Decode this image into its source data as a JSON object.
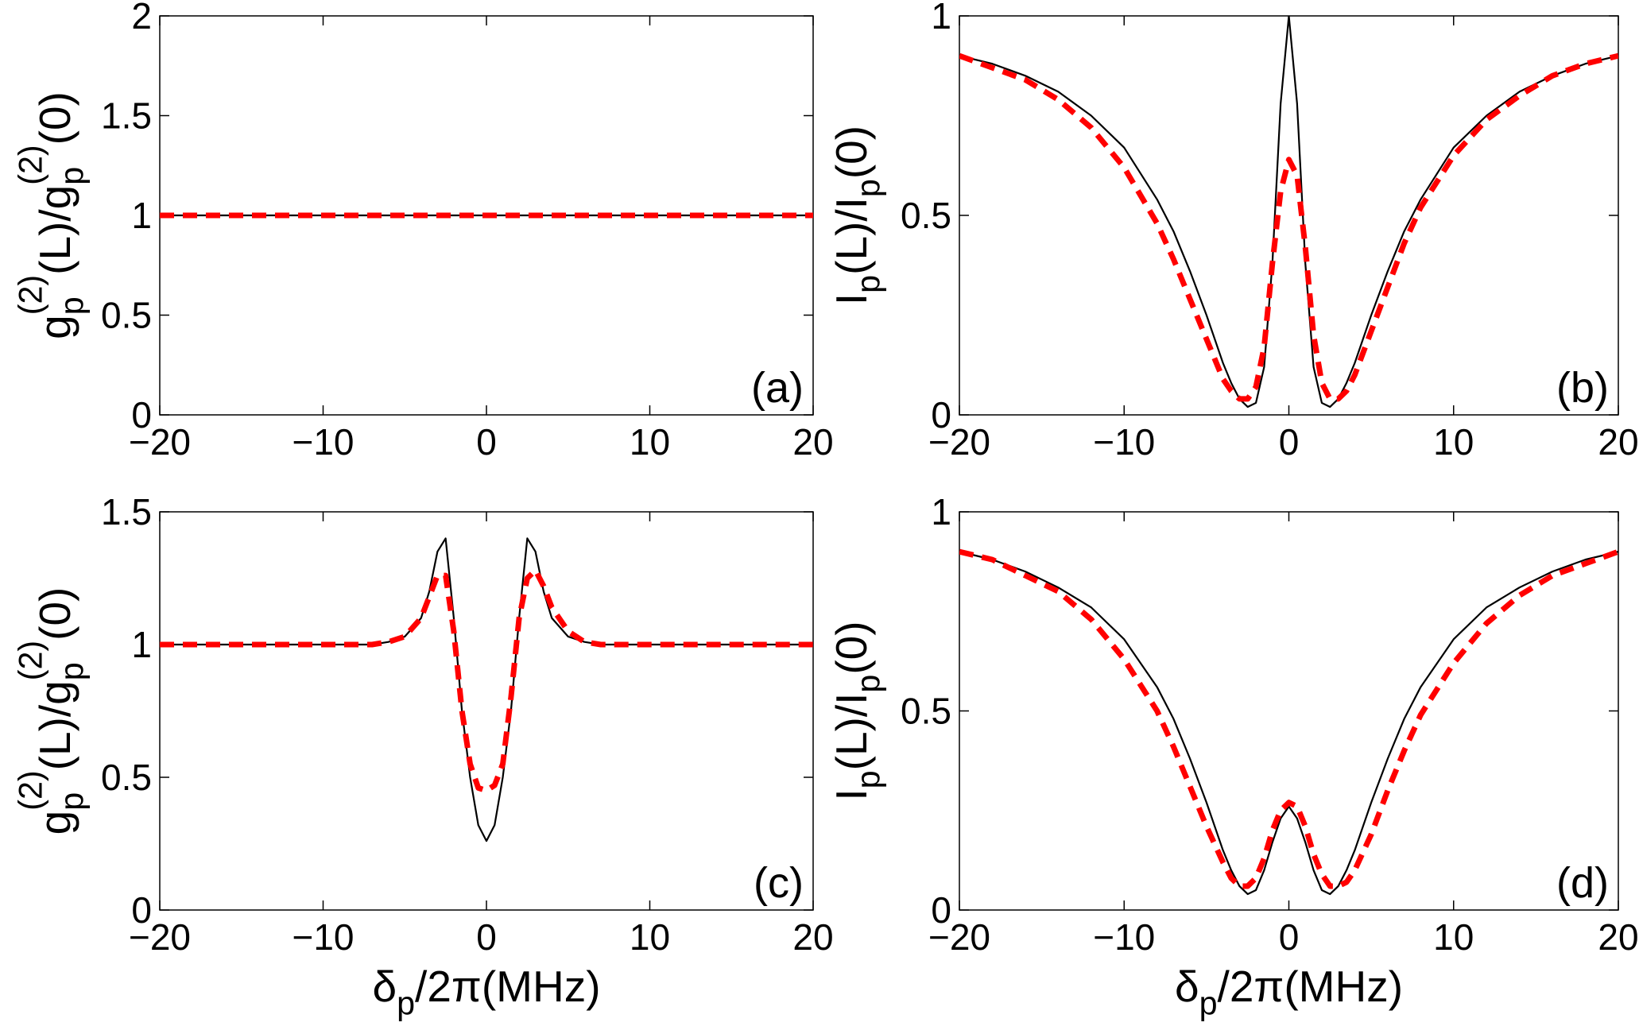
{
  "chart_data": [
    {
      "type": "line",
      "panel_label": "(a)",
      "ylabel": [
        "g",
        "p",
        "(2)",
        "(L)/g",
        "p",
        "(2)",
        "(0)"
      ],
      "xlim": [
        -20,
        20
      ],
      "xticks": [
        {
          "value": -20,
          "label": "−20"
        },
        {
          "value": -10,
          "label": "−10"
        },
        0,
        10,
        20
      ],
      "ylim": [
        0,
        2
      ],
      "yticks": [
        0,
        0.5,
        1,
        1.5,
        2
      ],
      "x": [
        -20,
        -18,
        -16,
        -14,
        -12,
        -10,
        -8,
        -7,
        -6,
        -5,
        -4,
        -3.5,
        -3,
        -2.5,
        -2,
        -1.5,
        -1,
        -0.5,
        0,
        0.5,
        1,
        1.5,
        2,
        2.5,
        3,
        3.5,
        4,
        5,
        6,
        7,
        8,
        10,
        12,
        14,
        16,
        18,
        20
      ],
      "series": [
        {
          "color": "#000000",
          "style": "solid",
          "values": [
            1,
            1,
            1,
            1,
            1,
            1,
            1,
            1,
            1,
            1,
            1,
            1,
            1,
            1,
            1,
            1,
            1,
            1,
            1,
            1,
            1,
            1,
            1,
            1,
            1,
            1,
            1,
            1,
            1,
            1,
            1,
            1,
            1,
            1,
            1,
            1,
            1
          ]
        },
        {
          "color": "#ff0000",
          "style": "dashed",
          "values": [
            1,
            1,
            1,
            1,
            1,
            1,
            1,
            1,
            1,
            1,
            1,
            1,
            1,
            1,
            1,
            1,
            1,
            1,
            1,
            1,
            1,
            1,
            1,
            1,
            1,
            1,
            1,
            1,
            1,
            1,
            1,
            1,
            1,
            1,
            1,
            1,
            1
          ]
        }
      ]
    },
    {
      "type": "line",
      "panel_label": "(b)",
      "ylabel": [
        "I",
        "p",
        "(L)/I",
        "p",
        "(0)"
      ],
      "xlim": [
        -20,
        20
      ],
      "xticks": [
        {
          "value": -20,
          "label": "−20"
        },
        {
          "value": -10,
          "label": "−10"
        },
        0,
        10,
        20
      ],
      "ylim": [
        0,
        1
      ],
      "yticks": [
        0,
        0.5,
        1
      ],
      "x": [
        -20,
        -18,
        -16,
        -14,
        -12,
        -10,
        -8,
        -7,
        -6,
        -5,
        -4,
        -3.5,
        -3,
        -2.5,
        -2,
        -1.5,
        -1,
        -0.5,
        0,
        0.5,
        1,
        1.5,
        2,
        2.5,
        3,
        3.5,
        4,
        5,
        6,
        7,
        8,
        10,
        12,
        14,
        16,
        18,
        20
      ],
      "series": [
        {
          "color": "#000000",
          "style": "solid",
          "values": [
            0.9,
            0.88,
            0.85,
            0.81,
            0.75,
            0.67,
            0.54,
            0.46,
            0.36,
            0.25,
            0.13,
            0.08,
            0.04,
            0.02,
            0.03,
            0.12,
            0.38,
            0.78,
            1.0,
            0.78,
            0.38,
            0.12,
            0.03,
            0.02,
            0.04,
            0.08,
            0.13,
            0.25,
            0.36,
            0.46,
            0.54,
            0.67,
            0.75,
            0.81,
            0.85,
            0.88,
            0.9
          ]
        },
        {
          "color": "#ff0000",
          "style": "dashed",
          "values": [
            0.9,
            0.87,
            0.84,
            0.79,
            0.72,
            0.62,
            0.48,
            0.39,
            0.29,
            0.19,
            0.09,
            0.06,
            0.04,
            0.04,
            0.07,
            0.17,
            0.38,
            0.56,
            0.64,
            0.6,
            0.42,
            0.2,
            0.08,
            0.04,
            0.04,
            0.06,
            0.1,
            0.21,
            0.32,
            0.43,
            0.52,
            0.65,
            0.74,
            0.8,
            0.85,
            0.88,
            0.9
          ]
        }
      ]
    },
    {
      "type": "line",
      "panel_label": "(c)",
      "ylabel": [
        "g",
        "p",
        "(2)",
        "(L)/g",
        "p",
        "(2)",
        "(0)"
      ],
      "xlabel": [
        "δ",
        "p",
        "/2π(MHz)"
      ],
      "xlim": [
        -20,
        20
      ],
      "xticks": [
        {
          "value": -20,
          "label": "−20"
        },
        {
          "value": -10,
          "label": "−10"
        },
        0,
        10,
        20
      ],
      "ylim": [
        0,
        1.5
      ],
      "yticks": [
        0,
        0.5,
        1,
        1.5
      ],
      "x": [
        -20,
        -18,
        -16,
        -14,
        -12,
        -10,
        -8,
        -7,
        -6,
        -5,
        -4,
        -3.5,
        -3,
        -2.5,
        -2,
        -1.5,
        -1,
        -0.5,
        0,
        0.5,
        1,
        1.5,
        2,
        2.5,
        3,
        3.5,
        4,
        5,
        6,
        7,
        8,
        10,
        12,
        14,
        16,
        18,
        20
      ],
      "series": [
        {
          "color": "#000000",
          "style": "solid",
          "values": [
            1,
            1,
            1,
            1,
            1,
            1,
            1,
            1,
            1.01,
            1.03,
            1.1,
            1.2,
            1.35,
            1.4,
            1.1,
            0.75,
            0.5,
            0.32,
            0.26,
            0.32,
            0.5,
            0.75,
            1.1,
            1.4,
            1.35,
            1.2,
            1.1,
            1.03,
            1.01,
            1,
            1,
            1,
            1,
            1,
            1,
            1,
            1
          ]
        },
        {
          "color": "#ff0000",
          "style": "dashed",
          "values": [
            1,
            1,
            1,
            1,
            1,
            1,
            1,
            1,
            1.01,
            1.03,
            1.1,
            1.18,
            1.26,
            1.26,
            1.05,
            0.75,
            0.55,
            0.46,
            0.45,
            0.47,
            0.55,
            0.8,
            1.1,
            1.25,
            1.28,
            1.22,
            1.14,
            1.05,
            1.01,
            1,
            1,
            1,
            1,
            1,
            1,
            1,
            1
          ]
        }
      ]
    },
    {
      "type": "line",
      "panel_label": "(d)",
      "ylabel": [
        "I",
        "p",
        "(L)/I",
        "p",
        "(0)"
      ],
      "xlabel": [
        "δ",
        "p",
        "/2π(MHz)"
      ],
      "xlim": [
        -20,
        20
      ],
      "xticks": [
        {
          "value": -20,
          "label": "−20"
        },
        {
          "value": -10,
          "label": "−10"
        },
        0,
        10,
        20
      ],
      "ylim": [
        0,
        1
      ],
      "yticks": [
        0,
        0.5,
        1
      ],
      "x": [
        -20,
        -18,
        -16,
        -14,
        -12,
        -10,
        -8,
        -7,
        -6,
        -5,
        -4,
        -3.5,
        -3,
        -2.5,
        -2,
        -1.5,
        -1,
        -0.5,
        0,
        0.5,
        1,
        1.5,
        2,
        2.5,
        3,
        3.5,
        4,
        5,
        6,
        7,
        8,
        10,
        12,
        14,
        16,
        18,
        20
      ],
      "series": [
        {
          "color": "#000000",
          "style": "solid",
          "values": [
            0.9,
            0.88,
            0.85,
            0.81,
            0.76,
            0.68,
            0.56,
            0.48,
            0.38,
            0.27,
            0.15,
            0.1,
            0.06,
            0.04,
            0.05,
            0.1,
            0.17,
            0.23,
            0.26,
            0.23,
            0.17,
            0.1,
            0.05,
            0.04,
            0.06,
            0.1,
            0.15,
            0.27,
            0.38,
            0.48,
            0.56,
            0.68,
            0.76,
            0.81,
            0.85,
            0.88,
            0.9
          ]
        },
        {
          "color": "#ff0000",
          "style": "dashed",
          "values": [
            0.9,
            0.88,
            0.84,
            0.8,
            0.73,
            0.63,
            0.5,
            0.41,
            0.31,
            0.21,
            0.12,
            0.08,
            0.06,
            0.06,
            0.08,
            0.13,
            0.2,
            0.25,
            0.27,
            0.26,
            0.21,
            0.14,
            0.09,
            0.06,
            0.06,
            0.07,
            0.1,
            0.19,
            0.3,
            0.4,
            0.49,
            0.62,
            0.72,
            0.79,
            0.84,
            0.87,
            0.9
          ]
        }
      ]
    }
  ]
}
